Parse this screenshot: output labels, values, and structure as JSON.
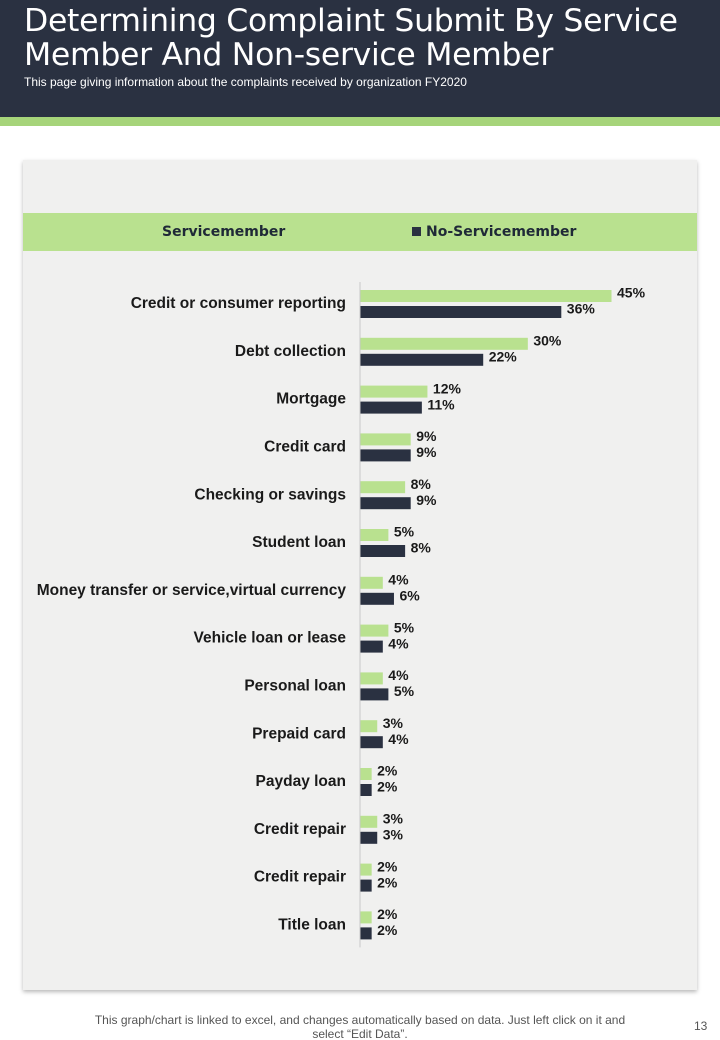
{
  "header": {
    "title": "Determining Complaint Submit By Service Member And Non-service Member",
    "subtitle": "This page giving information about the complaints received  by organization FY2020"
  },
  "legend": {
    "series_1": "Servicemember",
    "series_2": "No-Servicemember"
  },
  "colors": {
    "header_bg": "#2a3141",
    "accent": "#a6d47a",
    "legend_band": "#b9e18f",
    "series_1": "#b9e18f",
    "series_2": "#2a3141"
  },
  "chart_data": {
    "type": "bar",
    "orientation": "horizontal",
    "categories": [
      "Credit or consumer reporting",
      "Debt collection",
      "Mortgage",
      "Credit card",
      "Checking or savings",
      "Student loan",
      "Money transfer or service,virtual currency",
      "Vehicle loan or lease",
      "Personal loan",
      "Prepaid card",
      "Payday loan",
      "Credit repair",
      "Credit repair",
      "Title loan"
    ],
    "series": [
      {
        "name": "Servicemember",
        "values": [
          45,
          30,
          12,
          9,
          8,
          5,
          4,
          5,
          4,
          3,
          2,
          3,
          2,
          2
        ]
      },
      {
        "name": "No-Servicemember",
        "values": [
          36,
          22,
          11,
          9,
          9,
          8,
          6,
          4,
          5,
          4,
          2,
          3,
          2,
          2
        ]
      }
    ],
    "value_suffix": "%",
    "legend_position": "top",
    "grid": false
  },
  "footer": {
    "note": "This graph/chart is linked to excel,  and changes automatically based on data. Just left click on it and select “Edit Data”.",
    "page_number": "13"
  }
}
